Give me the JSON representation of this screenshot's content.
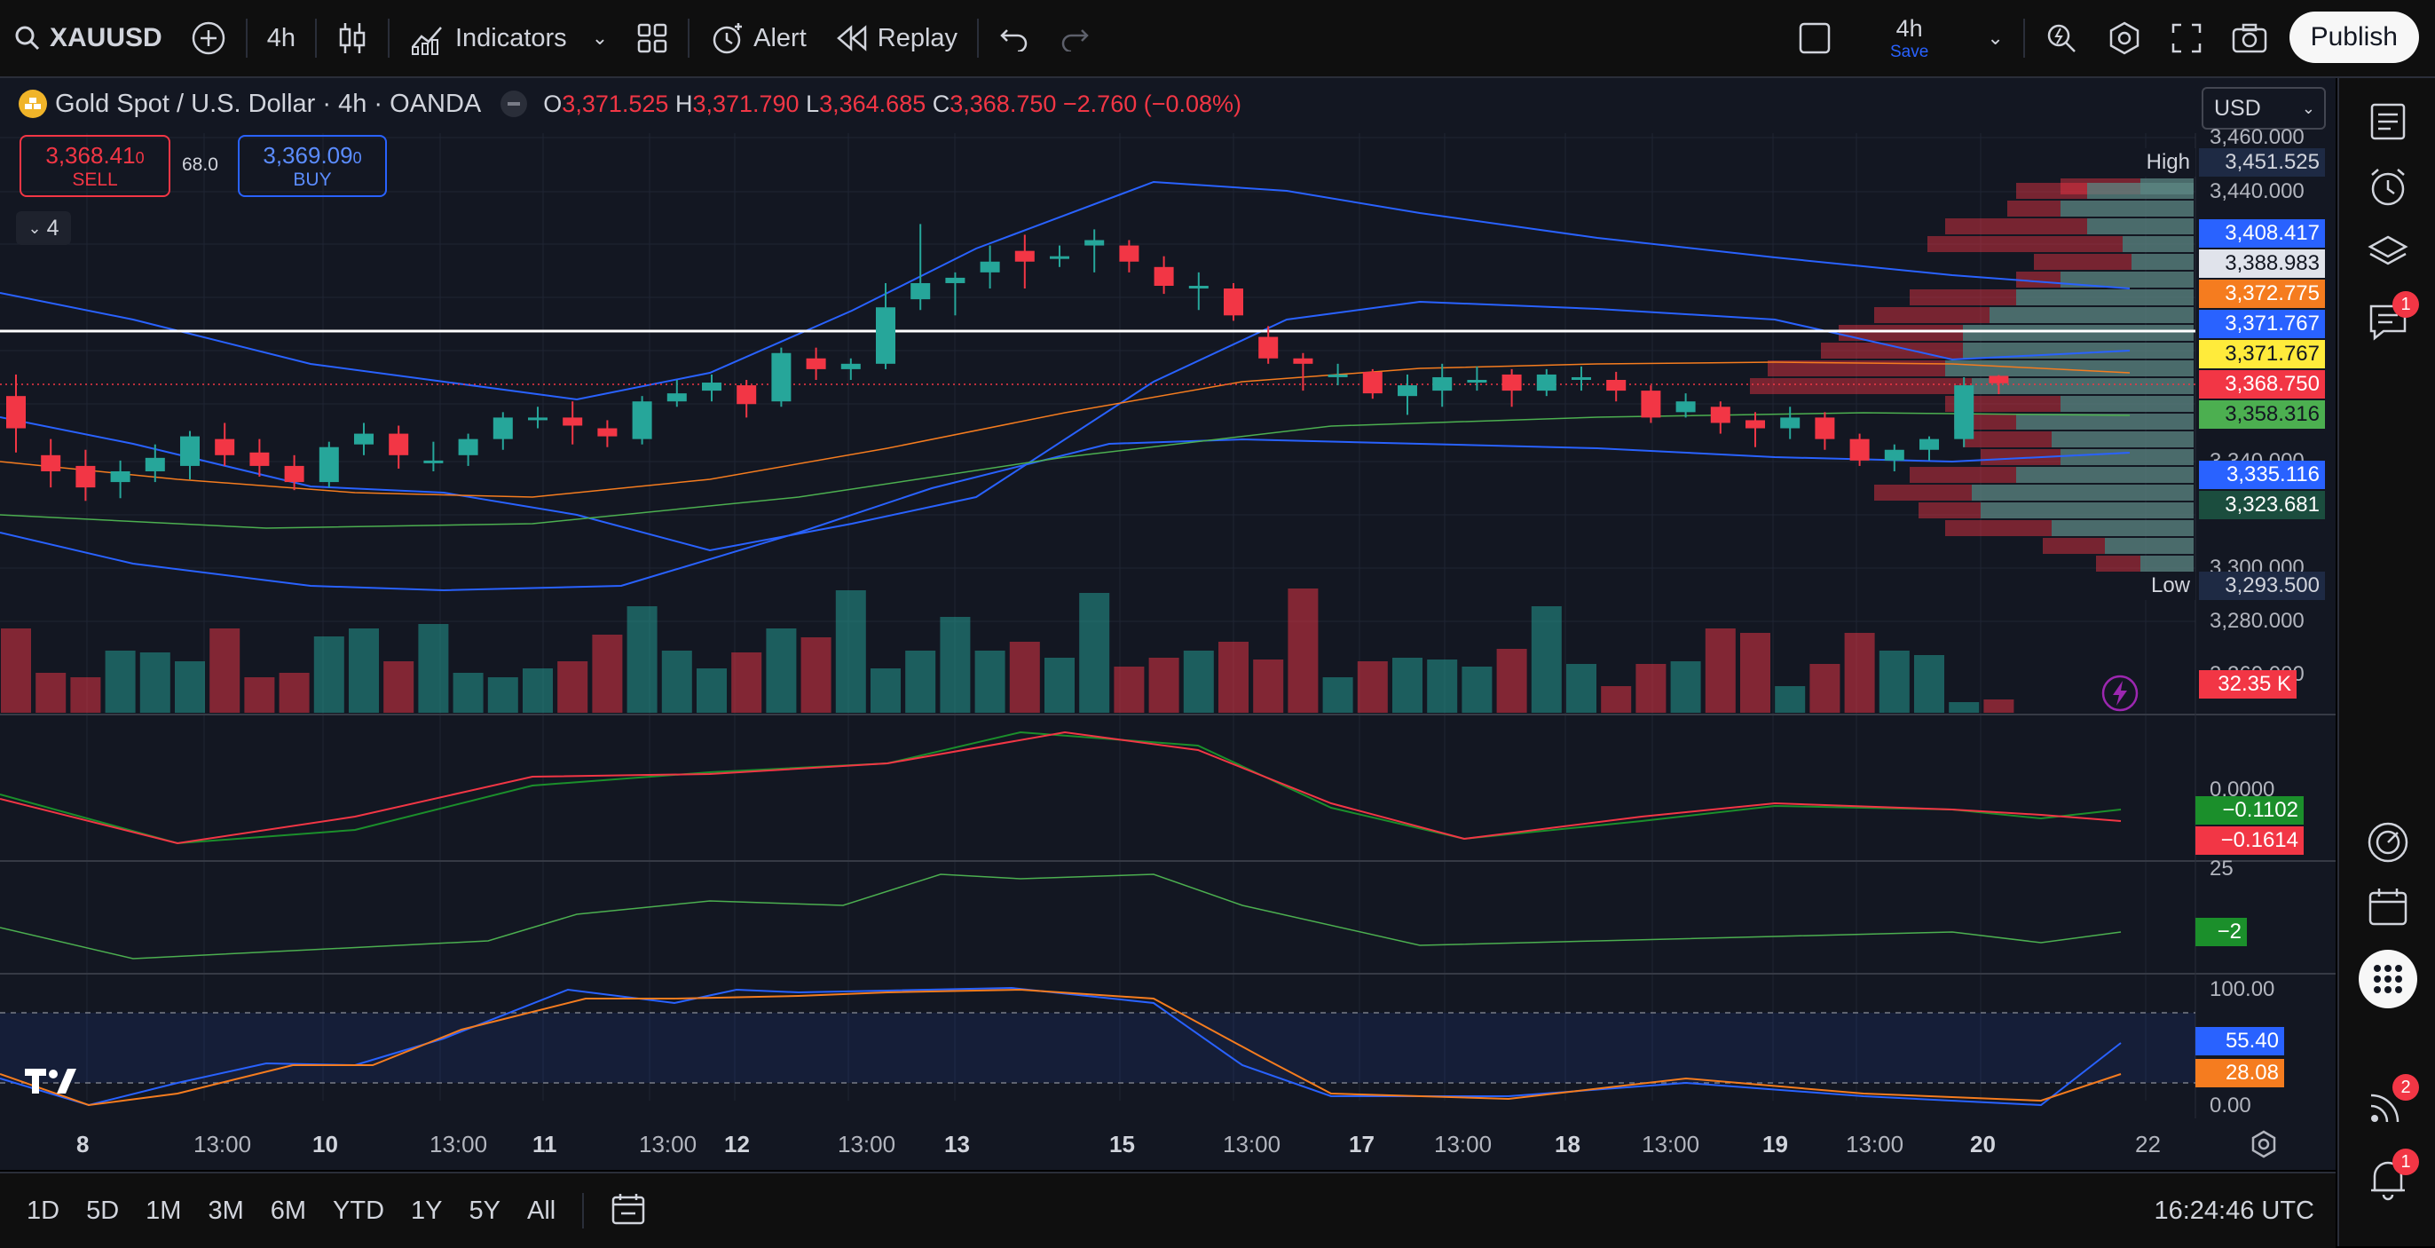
{
  "toolbar": {
    "symbol": "XAUUSD",
    "interval": "4h",
    "indicators_label": "Indicators",
    "alert_label": "Alert",
    "replay_label": "Replay",
    "layout_interval": "4h",
    "layout_save": "Save",
    "publish_label": "Publish"
  },
  "legend": {
    "title": "Gold Spot / U.S. Dollar · 4h · OANDA",
    "o_label": "O",
    "o_value": "3,371.525",
    "h_label": "H",
    "h_value": "3,371.790",
    "l_label": "L",
    "l_value": "3,364.685",
    "c_label": "C",
    "c_value": "3,368.750",
    "change": "−2.760 (−0.08%)",
    "sell_price": "3,368.41",
    "sell_price_small": "0",
    "sell_label": "SELL",
    "spread": "68.0",
    "buy_price": "3,369.09",
    "buy_price_small": "0",
    "buy_label": "BUY",
    "collapsed_count": "4"
  },
  "currency": "USD",
  "price_axis": {
    "ticks": [
      "3,460.000",
      "3,440.000",
      "3,340.000",
      "3,300.000",
      "3,280.000",
      "3,260.000"
    ],
    "high_label": "High",
    "high_value": "3,451.525",
    "low_label": "Low",
    "low_value": "3,293.500",
    "labels": [
      {
        "text": "3,408.417",
        "bg": "#2962ff",
        "fg": "#ffffff"
      },
      {
        "text": "3,388.983",
        "bg": "#e0e3eb",
        "fg": "#131722"
      },
      {
        "text": "3,372.775",
        "bg": "#f57c1f",
        "fg": "#ffffff"
      },
      {
        "text": "3,371.767",
        "bg": "#2962ff",
        "fg": "#ffffff"
      },
      {
        "text": "3,371.767",
        "bg": "#ffeb3b",
        "fg": "#131722"
      },
      {
        "text": "3,368.750",
        "bg": "#f23645",
        "fg": "#ffffff"
      },
      {
        "text": "3,358.316",
        "bg": "#4caf50",
        "fg": "#131722"
      },
      {
        "text": "3,335.116",
        "bg": "#2962ff",
        "fg": "#ffffff"
      },
      {
        "text": "3,323.681",
        "bg": "#1b4d3e",
        "fg": "#ffffff"
      }
    ],
    "volume_label": "32.35 K"
  },
  "macd_axis": {
    "tick": "0.0000",
    "val1": "−0.1102",
    "val2": "−0.1614"
  },
  "adx_axis": {
    "tick": "25",
    "val": "−2"
  },
  "stoch_axis": {
    "tick_top": "100.00",
    "tick_bottom": "0.00",
    "val1": "55.40",
    "val2": "28.08"
  },
  "time_axis": [
    {
      "text": "8",
      "bold": true
    },
    {
      "text": "13:00",
      "bold": false
    },
    {
      "text": "10",
      "bold": true
    },
    {
      "text": "13:00",
      "bold": false
    },
    {
      "text": "11",
      "bold": true
    },
    {
      "text": "13:00",
      "bold": false
    },
    {
      "text": "12",
      "bold": true
    },
    {
      "text": "13:00",
      "bold": false
    },
    {
      "text": "13",
      "bold": true
    },
    {
      "text": "15",
      "bold": true
    },
    {
      "text": "13:00",
      "bold": false
    },
    {
      "text": "17",
      "bold": true
    },
    {
      "text": "13:00",
      "bold": false
    },
    {
      "text": "18",
      "bold": true
    },
    {
      "text": "13:00",
      "bold": false
    },
    {
      "text": "19",
      "bold": true
    },
    {
      "text": "13:00",
      "bold": false
    },
    {
      "text": "20",
      "bold": true
    },
    {
      "text": "22",
      "bold": false
    }
  ],
  "bottom": {
    "ranges": [
      "1D",
      "5D",
      "1M",
      "3M",
      "6M",
      "YTD",
      "1Y",
      "5Y",
      "All"
    ],
    "clock": "16:24:46 UTC"
  },
  "right_panel": {
    "chat_badge": "1",
    "signal_badge": "2",
    "notif_badge": "1"
  },
  "colors": {
    "up": "#26a69a",
    "down": "#f23645",
    "background": "#131722",
    "bb_line": "#2962ff"
  }
}
